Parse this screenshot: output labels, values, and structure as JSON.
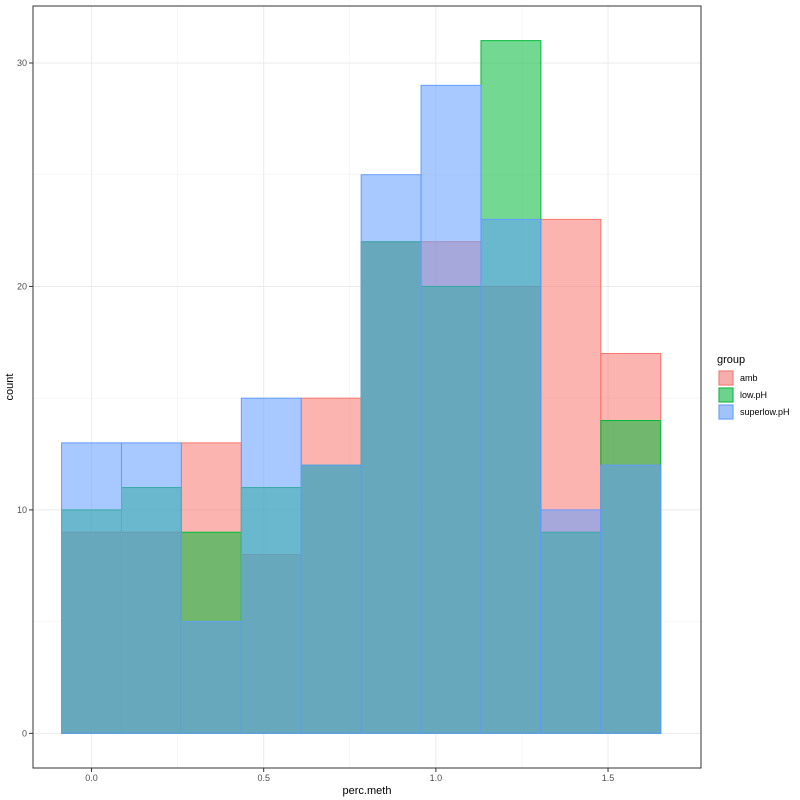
{
  "chart_data": {
    "type": "histogram",
    "xlabel": "perc.meth",
    "ylabel": "count",
    "xlim": [
      -0.17,
      1.77
    ],
    "ylim": [
      -1.55,
      32.55
    ],
    "x_ticks": [
      0.0,
      0.5,
      1.0,
      1.5
    ],
    "x_tick_labels": [
      "0.0",
      "0.5",
      "1.0",
      "1.5"
    ],
    "y_ticks": [
      0,
      10,
      20,
      30
    ],
    "y_tick_labels": [
      "0",
      "10",
      "20",
      "30"
    ],
    "grid": true,
    "legend": {
      "title": "group",
      "position": "right"
    },
    "bins": [
      [
        -0.087,
        0.087
      ],
      [
        0.087,
        0.261
      ],
      [
        0.261,
        0.435
      ],
      [
        0.435,
        0.609
      ],
      [
        0.609,
        0.783
      ],
      [
        0.783,
        0.957
      ],
      [
        0.957,
        1.131
      ],
      [
        1.131,
        1.305
      ],
      [
        1.305,
        1.479
      ],
      [
        1.479,
        1.653
      ]
    ],
    "series": [
      {
        "name": "amb",
        "color": "#F8766D",
        "values": [
          9,
          9,
          13,
          8,
          15,
          22,
          22,
          20,
          23,
          17
        ]
      },
      {
        "name": "low.pH",
        "color": "#00BA38",
        "values": [
          10,
          11,
          9,
          11,
          12,
          22,
          20,
          31,
          9,
          14
        ]
      },
      {
        "name": "superlow.pH",
        "color": "#619CFF",
        "values": [
          13,
          13,
          5,
          15,
          12,
          25,
          29,
          23,
          10,
          12
        ]
      }
    ]
  }
}
